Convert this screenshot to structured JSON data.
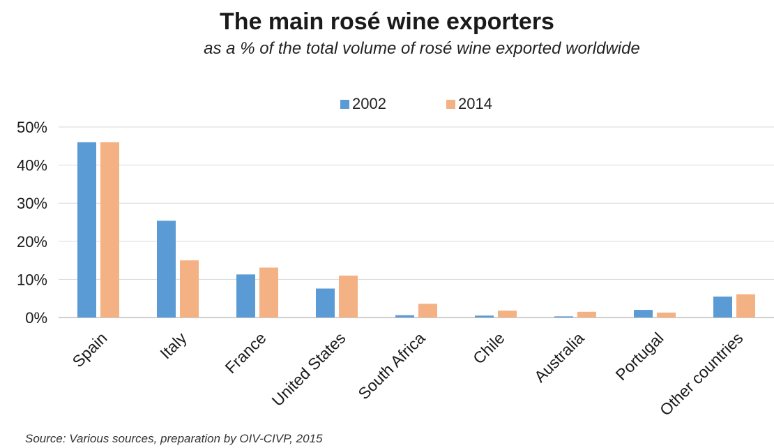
{
  "title": "The main rosé wine exporters",
  "subtitle": "as a % of the total volume of rosé wine exported worldwide",
  "source": "Source: Various sources, preparation by OIV-CIVP, 2015",
  "chart_data": {
    "type": "bar",
    "title": "The main rosé wine exporters",
    "subtitle": "as a % of the total volume of rosé wine exported worldwide",
    "categories": [
      "Spain",
      "Italy",
      "France",
      "United States",
      "South Africa",
      "Chile",
      "Australia",
      "Portugal",
      "Other countries"
    ],
    "series": [
      {
        "name": "2002",
        "color": "#5b9bd5",
        "values": [
          46,
          25.4,
          11.3,
          7.6,
          0.6,
          0.5,
          0.3,
          2.0,
          5.5
        ]
      },
      {
        "name": "2014",
        "color": "#f4b183",
        "values": [
          46,
          15.0,
          13.1,
          11.0,
          3.6,
          1.8,
          1.5,
          1.3,
          6.1
        ]
      }
    ],
    "y_ticks": [
      "0%",
      "10%",
      "20%",
      "30%",
      "40%",
      "50%"
    ],
    "ylim": [
      0,
      50
    ],
    "grid": true,
    "legend": "top-center"
  }
}
